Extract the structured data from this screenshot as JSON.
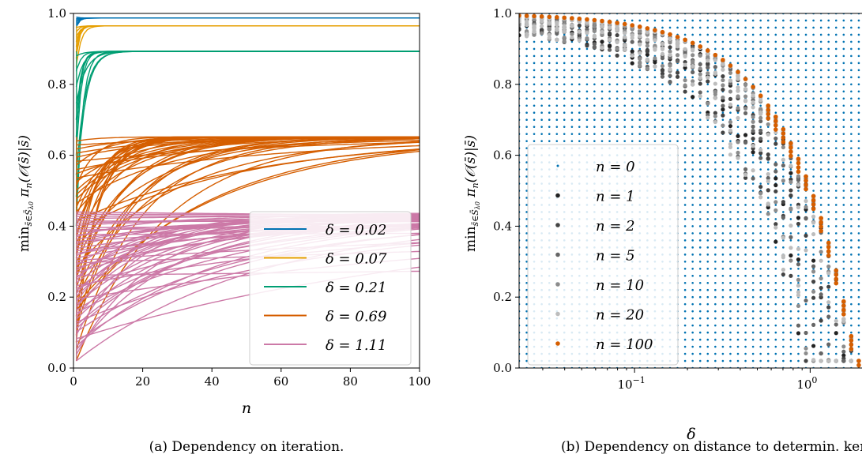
{
  "chart_data": [
    {
      "type": "line",
      "caption": "(a) Dependency on iteration.",
      "xlabel": "n",
      "ylabel": "min_{s̄∈S̄λ0} πn(O(s̄)|s̄)",
      "xlim": [
        0,
        100
      ],
      "ylim": [
        0,
        1
      ],
      "xticks": [
        "0",
        "20",
        "40",
        "60",
        "80",
        "100"
      ],
      "yticks": [
        "0.0",
        "0.2",
        "0.4",
        "0.6",
        "0.8",
        "1.0"
      ],
      "legend_position": "lower-right",
      "series": [
        {
          "name": "δ = 0.02",
          "color": "#0072b2",
          "limit": 0.987,
          "start_range": [
            0.96,
            0.99
          ],
          "rate_range": [
            0.9,
            1.5
          ],
          "count": 6
        },
        {
          "name": "δ = 0.07",
          "color": "#e69f00",
          "limit": 0.965,
          "start_range": [
            0.85,
            0.96
          ],
          "rate_range": [
            0.7,
            1.2
          ],
          "count": 8
        },
        {
          "name": "δ = 0.21",
          "color": "#009e73",
          "limit": 0.893,
          "start_range": [
            0.4,
            0.88
          ],
          "rate_range": [
            0.35,
            0.9
          ],
          "count": 10
        },
        {
          "name": "δ = 0.69",
          "color": "#d55e00",
          "limit": 0.652,
          "start_range": [
            0.02,
            0.64
          ],
          "rate_range": [
            0.015,
            0.2
          ],
          "count": 45
        },
        {
          "name": "δ = 1.11",
          "color": "#cc79a7",
          "limit": 0.44,
          "start_range": [
            0.02,
            0.44
          ],
          "rate_range": [
            0.0007,
            0.06
          ],
          "count": 55
        }
      ]
    },
    {
      "type": "scatter",
      "caption": "(b) Dependency on distance to determin. kern",
      "xlabel": "δ",
      "ylabel": "min_{s̄∈S̄λ0} πn(O(s̄)|s̄)",
      "xscale": "log",
      "xlim": [
        0.022,
        2.1
      ],
      "ylim": [
        0,
        1
      ],
      "xtick_values": [
        0.1,
        1
      ],
      "ylim_ticks": [
        "0.0",
        "0.2",
        "0.4",
        "0.6",
        "0.8",
        "1.0"
      ],
      "legend_position": "lower-left",
      "delta_values": [
        0.022,
        0.0243,
        0.0268,
        0.0296,
        0.0327,
        0.0361,
        0.0398,
        0.044,
        0.0485,
        0.0536,
        0.0591,
        0.0653,
        0.0721,
        0.0796,
        0.0879,
        0.097,
        0.1071,
        0.1183,
        0.1306,
        0.1442,
        0.1592,
        0.1757,
        0.194,
        0.2142,
        0.2365,
        0.2611,
        0.2883,
        0.3183,
        0.3514,
        0.388,
        0.4284,
        0.473,
        0.5222,
        0.5766,
        0.6366,
        0.7029,
        0.776,
        0.8568,
        0.946,
        1.0445,
        1.1532,
        1.2732,
        1.4057,
        1.552,
        1.7136,
        1.892,
        2.0889
      ],
      "series": [
        {
          "name": "n = 0",
          "color": "#0072b2"
        },
        {
          "name": "n = 1",
          "color": "#222222"
        },
        {
          "name": "n = 2",
          "color": "#444444"
        },
        {
          "name": "n = 5",
          "color": "#666666"
        },
        {
          "name": "n = 10",
          "color": "#8c8c8c"
        },
        {
          "name": "n = 20",
          "color": "#bdbdbd"
        },
        {
          "name": "n = 100",
          "color": "#d55e00"
        }
      ]
    }
  ]
}
